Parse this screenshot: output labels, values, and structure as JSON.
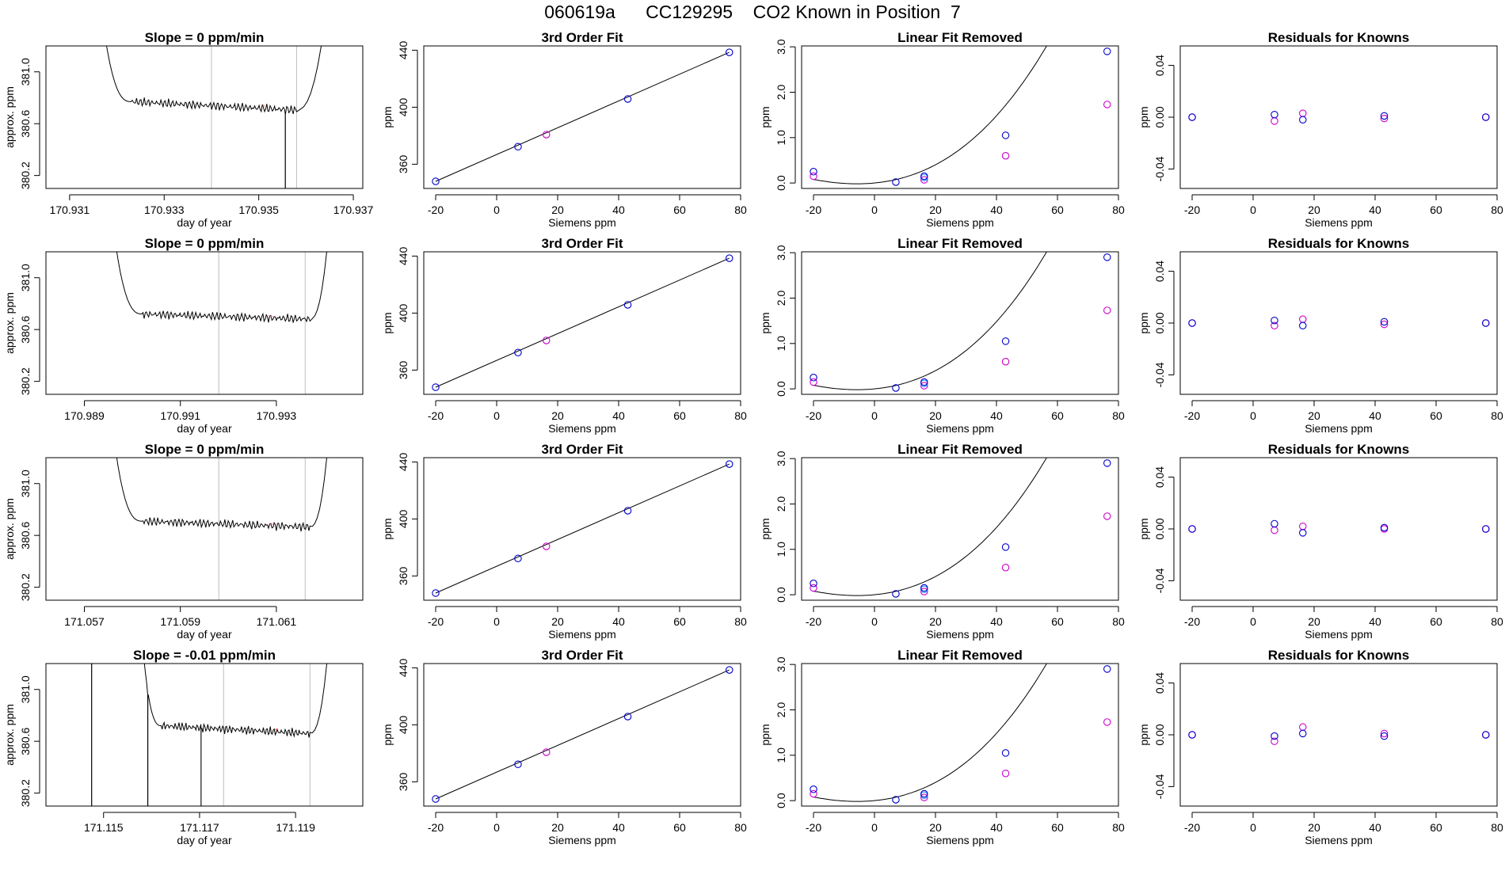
{
  "page_title": "060619a      CC129295    CO2 Known in Position  7",
  "colors": {
    "axis": "#000000",
    "trace": "#000000",
    "vline": "#bebebe",
    "known_blue": "#0000cd",
    "known_magenta": "#cd00cd",
    "known_lightblue": "#1e90ff",
    "spike_red": "#ff6060"
  },
  "chart_data": [
    {
      "type": "line",
      "row": 0,
      "title": "Slope =  0  ppm/min",
      "xlabel": "day of year",
      "ylabel": "approx. ppm",
      "xlim": [
        170.9305,
        170.9372
      ],
      "ylim": [
        380.1,
        381.2
      ],
      "xticks": [
        170.931,
        170.933,
        170.935,
        170.937
      ],
      "xtick_labels": [
        "170.931",
        "170.933",
        "170.935",
        "170.937"
      ],
      "yticks": [
        380.2,
        380.6,
        381.0
      ],
      "ytick_labels": [
        "380.2",
        "380.6",
        "381.0"
      ],
      "vlines": [
        170.934,
        170.9358
      ],
      "trace": {
        "start": 170.9317,
        "base_start": 170.9323,
        "base_end": 170.9358,
        "end": 170.9364,
        "baseline_start": 380.77,
        "baseline_end": 380.705,
        "dips": [
          [
            170.93556,
            380.1
          ]
        ]
      }
    },
    {
      "type": "line",
      "row": 1,
      "title": "Slope =  0  ppm/min",
      "xlabel": "day of year",
      "ylabel": "approx. ppm",
      "xlim": [
        170.9882,
        170.9948
      ],
      "ylim": [
        380.1,
        381.2
      ],
      "xticks": [
        170.989,
        170.991,
        170.993
      ],
      "xtick_labels": [
        "170.989",
        "170.991",
        "170.993"
      ],
      "yticks": [
        380.2,
        380.6,
        381.0
      ],
      "ytick_labels": [
        "380.2",
        "380.6",
        "381.0"
      ],
      "vlines": [
        170.9918,
        170.9936
      ],
      "trace": {
        "start": 170.9896,
        "base_start": 170.9902,
        "base_end": 170.9937,
        "end": 170.9941,
        "baseline_start": 380.72,
        "baseline_end": 380.68,
        "dips": []
      }
    },
    {
      "type": "line",
      "row": 2,
      "title": "Slope =  0  ppm/min",
      "xlabel": "day of year",
      "ylabel": "approx. ppm",
      "xlim": [
        171.0562,
        171.0628
      ],
      "ylim": [
        380.1,
        381.2
      ],
      "xticks": [
        171.057,
        171.059,
        171.061
      ],
      "xtick_labels": [
        "171.057",
        "171.059",
        "171.061"
      ],
      "yticks": [
        380.2,
        380.6,
        381.0
      ],
      "ytick_labels": [
        "380.2",
        "380.6",
        "381.0"
      ],
      "vlines": [
        171.0598,
        171.0616
      ],
      "trace": {
        "start": 171.0576,
        "base_start": 171.0582,
        "base_end": 171.0617,
        "end": 171.0621,
        "baseline_start": 380.71,
        "baseline_end": 380.665,
        "dips": []
      }
    },
    {
      "type": "line",
      "row": 3,
      "title": "Slope =  -0.01  ppm/min",
      "xlabel": "day of year",
      "ylabel": "approx. ppm",
      "xlim": [
        171.1138,
        171.1204
      ],
      "ylim": [
        380.1,
        381.2
      ],
      "xticks": [
        171.115,
        171.117,
        171.119
      ],
      "xtick_labels": [
        "171.115",
        "171.117",
        "171.119"
      ],
      "yticks": [
        380.2,
        380.6,
        381.0
      ],
      "ytick_labels": [
        "380.2",
        "380.6",
        "381.0"
      ],
      "vlines": [
        171.1175,
        171.1193
      ],
      "trace": {
        "start": 171.1158,
        "base_start": 171.1162,
        "base_end": 171.1193,
        "end": 171.1197,
        "baseline_start": 380.72,
        "baseline_end": 380.66,
        "dips": [
          [
            171.11475,
            380.1
          ],
          [
            171.11592,
            380.1
          ],
          [
            171.11703,
            380.1
          ]
        ]
      }
    },
    {
      "type": "scatter",
      "row": 0,
      "title": "3rd Order Fit",
      "xlabel": "Siemens ppm",
      "ylabel": "ppm",
      "xlim": [
        -23.9,
        80
      ],
      "ylim": [
        343,
        443
      ],
      "xticks": [
        -20,
        0,
        20,
        40,
        60,
        80
      ],
      "yticks": [
        360,
        400,
        440
      ],
      "fit_line": [
        [
          -20,
          348
        ],
        [
          76.3,
          438.5
        ]
      ],
      "points_blue": [
        [
          -20,
          348
        ],
        [
          7,
          372.3
        ],
        [
          43,
          405.8
        ],
        [
          76.3,
          438.5
        ]
      ],
      "points_magenta": [
        [
          16.3,
          380.8
        ]
      ]
    },
    {
      "type": "scatter",
      "row": 1,
      "title": "3rd Order Fit",
      "xlabel": "Siemens ppm",
      "ylabel": "ppm",
      "xlim": [
        -23.9,
        80
      ],
      "ylim": [
        343,
        443
      ],
      "xticks": [
        -20,
        0,
        20,
        40,
        60,
        80
      ],
      "yticks": [
        360,
        400,
        440
      ],
      "fit_line": [
        [
          -20,
          348
        ],
        [
          76.3,
          438.5
        ]
      ],
      "points_blue": [
        [
          -20,
          348
        ],
        [
          7,
          372.3
        ],
        [
          43,
          405.8
        ],
        [
          76.3,
          438.5
        ]
      ],
      "points_magenta": [
        [
          16.3,
          380.8
        ]
      ]
    },
    {
      "type": "scatter",
      "row": 2,
      "title": "3rd Order Fit",
      "xlabel": "Siemens ppm",
      "ylabel": "ppm",
      "xlim": [
        -23.9,
        80
      ],
      "ylim": [
        343,
        443
      ],
      "xticks": [
        -20,
        0,
        20,
        40,
        60,
        80
      ],
      "yticks": [
        360,
        400,
        440
      ],
      "fit_line": [
        [
          -20,
          348
        ],
        [
          76.3,
          438.5
        ]
      ],
      "points_blue": [
        [
          -20,
          348
        ],
        [
          7,
          372.3
        ],
        [
          43,
          405.8
        ],
        [
          76.3,
          438.5
        ]
      ],
      "points_magenta": [
        [
          16.3,
          380.8
        ]
      ]
    },
    {
      "type": "scatter",
      "row": 3,
      "title": "3rd Order Fit",
      "xlabel": "Siemens ppm",
      "ylabel": "ppm",
      "xlim": [
        -23.9,
        80
      ],
      "ylim": [
        343,
        443
      ],
      "xticks": [
        -20,
        0,
        20,
        40,
        60,
        80
      ],
      "yticks": [
        360,
        400,
        440
      ],
      "fit_line": [
        [
          -20,
          348
        ],
        [
          76.3,
          438.5
        ]
      ],
      "points_blue": [
        [
          -20,
          348
        ],
        [
          7,
          372.3
        ],
        [
          43,
          405.8
        ],
        [
          76.3,
          438.5
        ]
      ],
      "points_magenta": [
        [
          16.3,
          380.8
        ]
      ]
    },
    {
      "type": "scatter",
      "row": 0,
      "title": "Linear Fit Removed",
      "xlabel": "Siemens ppm",
      "ylabel": "ppm",
      "xlim": [
        -23.9,
        80
      ],
      "ylim": [
        -0.12,
        3.02
      ],
      "xticks": [
        -20,
        0,
        20,
        40,
        60,
        80
      ],
      "yticks": [
        0,
        1,
        2,
        3
      ],
      "ytick_labels": [
        "0.0",
        "1.0",
        "2.0",
        "3.0"
      ],
      "fit_curve": {
        "coef": [
          0.0006,
          0.0064,
          0.000415
        ],
        "x_from": -20,
        "x_to": 76.3
      },
      "points_blue": [
        [
          -20,
          0.25
        ],
        [
          7,
          0.02
        ],
        [
          16.3,
          0.15
        ],
        [
          43,
          1.05
        ],
        [
          76.3,
          2.9
        ]
      ],
      "points_magenta": [
        [
          -20,
          0.15
        ],
        [
          16.3,
          0.07
        ],
        [
          43,
          0.6
        ],
        [
          76.3,
          1.73
        ]
      ],
      "points_lightblue": [
        [
          16.3,
          0.12
        ]
      ]
    },
    {
      "type": "scatter",
      "row": 1,
      "title": "Linear Fit Removed",
      "xlabel": "Siemens ppm",
      "ylabel": "ppm",
      "xlim": [
        -23.9,
        80
      ],
      "ylim": [
        -0.12,
        3.02
      ],
      "xticks": [
        -20,
        0,
        20,
        40,
        60,
        80
      ],
      "yticks": [
        0,
        1,
        2,
        3
      ],
      "ytick_labels": [
        "0.0",
        "1.0",
        "2.0",
        "3.0"
      ],
      "fit_curve": {
        "coef": [
          0.0006,
          0.0064,
          0.000415
        ],
        "x_from": -20,
        "x_to": 76.3
      },
      "points_blue": [
        [
          -20,
          0.25
        ],
        [
          7,
          0.02
        ],
        [
          16.3,
          0.15
        ],
        [
          43,
          1.05
        ],
        [
          76.3,
          2.9
        ]
      ],
      "points_magenta": [
        [
          -20,
          0.15
        ],
        [
          16.3,
          0.07
        ],
        [
          43,
          0.6
        ],
        [
          76.3,
          1.73
        ]
      ],
      "points_lightblue": [
        [
          16.3,
          0.12
        ]
      ]
    },
    {
      "type": "scatter",
      "row": 2,
      "title": "Linear Fit Removed",
      "xlabel": "Siemens ppm",
      "ylabel": "ppm",
      "xlim": [
        -23.9,
        80
      ],
      "ylim": [
        -0.12,
        3.02
      ],
      "xticks": [
        -20,
        0,
        20,
        40,
        60,
        80
      ],
      "yticks": [
        0,
        1,
        2,
        3
      ],
      "ytick_labels": [
        "0.0",
        "1.0",
        "2.0",
        "3.0"
      ],
      "fit_curve": {
        "coef": [
          0.0006,
          0.0064,
          0.000415
        ],
        "x_from": -20,
        "x_to": 76.3
      },
      "points_blue": [
        [
          -20,
          0.25
        ],
        [
          7,
          0.02
        ],
        [
          16.3,
          0.15
        ],
        [
          43,
          1.05
        ],
        [
          76.3,
          2.9
        ]
      ],
      "points_magenta": [
        [
          -20,
          0.15
        ],
        [
          16.3,
          0.07
        ],
        [
          43,
          0.6
        ],
        [
          76.3,
          1.73
        ]
      ],
      "points_lightblue": [
        [
          16.3,
          0.12
        ]
      ]
    },
    {
      "type": "scatter",
      "row": 3,
      "title": "Linear Fit Removed",
      "xlabel": "Siemens ppm",
      "ylabel": "ppm",
      "xlim": [
        -23.9,
        80
      ],
      "ylim": [
        -0.12,
        3.02
      ],
      "xticks": [
        -20,
        0,
        20,
        40,
        60,
        80
      ],
      "yticks": [
        0,
        1,
        2,
        3
      ],
      "ytick_labels": [
        "0.0",
        "1.0",
        "2.0",
        "3.0"
      ],
      "fit_curve": {
        "coef": [
          0.0006,
          0.0064,
          0.000415
        ],
        "x_from": -20,
        "x_to": 76.3
      },
      "points_blue": [
        [
          -20,
          0.25
        ],
        [
          7,
          0.02
        ],
        [
          16.3,
          0.15
        ],
        [
          43,
          1.05
        ],
        [
          76.3,
          2.9
        ]
      ],
      "points_magenta": [
        [
          -20,
          0.15
        ],
        [
          16.3,
          0.07
        ],
        [
          43,
          0.6
        ],
        [
          76.3,
          1.73
        ]
      ],
      "points_lightblue": [
        [
          16.3,
          0.12
        ]
      ]
    },
    {
      "type": "scatter",
      "row": 0,
      "title": "Residuals for Knowns",
      "xlabel": "Siemens ppm",
      "ylabel": "ppm",
      "xlim": [
        -23.9,
        80
      ],
      "ylim": [
        -0.055,
        0.055
      ],
      "xticks": [
        -20,
        0,
        20,
        40,
        60,
        80
      ],
      "yticks": [
        -0.04,
        0.0,
        0.04
      ],
      "ytick_labels": [
        "-0.04",
        "0.00",
        "0.04"
      ],
      "points_blue": [
        [
          -20,
          0
        ],
        [
          7,
          0.002
        ],
        [
          16.3,
          -0.002
        ],
        [
          43,
          0.001
        ],
        [
          76.3,
          0
        ]
      ],
      "points_magenta": [
        [
          -20,
          0
        ],
        [
          7,
          -0.003
        ],
        [
          16.3,
          0.003
        ],
        [
          43,
          -0.001
        ],
        [
          76.3,
          0
        ]
      ]
    },
    {
      "type": "scatter",
      "row": 1,
      "title": "Residuals for Knowns",
      "xlabel": "Siemens ppm",
      "ylabel": "ppm",
      "xlim": [
        -23.9,
        80
      ],
      "ylim": [
        -0.055,
        0.055
      ],
      "xticks": [
        -20,
        0,
        20,
        40,
        60,
        80
      ],
      "yticks": [
        -0.04,
        0.0,
        0.04
      ],
      "ytick_labels": [
        "-0.04",
        "0.00",
        "0.04"
      ],
      "points_blue": [
        [
          -20,
          0
        ],
        [
          7,
          0.002
        ],
        [
          16.3,
          -0.002
        ],
        [
          43,
          0.001
        ],
        [
          76.3,
          0
        ]
      ],
      "points_magenta": [
        [
          -20,
          0
        ],
        [
          7,
          -0.002
        ],
        [
          16.3,
          0.003
        ],
        [
          43,
          -0.001
        ],
        [
          76.3,
          0
        ]
      ]
    },
    {
      "type": "scatter",
      "row": 2,
      "title": "Residuals for Knowns",
      "xlabel": "Siemens ppm",
      "ylabel": "ppm",
      "xlim": [
        -23.9,
        80
      ],
      "ylim": [
        -0.055,
        0.055
      ],
      "xticks": [
        -20,
        0,
        20,
        40,
        60,
        80
      ],
      "yticks": [
        -0.04,
        0.0,
        0.04
      ],
      "ytick_labels": [
        "-0.04",
        "0.00",
        "0.04"
      ],
      "points_blue": [
        [
          -20,
          0
        ],
        [
          7,
          0.004
        ],
        [
          16.3,
          -0.003
        ],
        [
          43,
          0.001
        ],
        [
          76.3,
          0
        ]
      ],
      "points_magenta": [
        [
          -20,
          0
        ],
        [
          7,
          -0.001
        ],
        [
          16.3,
          0.002
        ],
        [
          43,
          0
        ],
        [
          76.3,
          0
        ]
      ]
    },
    {
      "type": "scatter",
      "row": 3,
      "title": "Residuals for Knowns",
      "xlabel": "Siemens ppm",
      "ylabel": "ppm",
      "xlim": [
        -23.9,
        80
      ],
      "ylim": [
        -0.055,
        0.055
      ],
      "xticks": [
        -20,
        0,
        20,
        40,
        60,
        80
      ],
      "yticks": [
        -0.04,
        0.0,
        0.04
      ],
      "ytick_labels": [
        "-0.04",
        "0.00",
        "0.04"
      ],
      "points_blue": [
        [
          -20,
          0
        ],
        [
          7,
          -0.001
        ],
        [
          16.3,
          0.001
        ],
        [
          43,
          -0.001
        ],
        [
          76.3,
          0
        ]
      ],
      "points_magenta": [
        [
          -20,
          0
        ],
        [
          7,
          -0.005
        ],
        [
          16.3,
          0.006
        ],
        [
          43,
          0.001
        ],
        [
          76.3,
          0
        ]
      ]
    }
  ]
}
